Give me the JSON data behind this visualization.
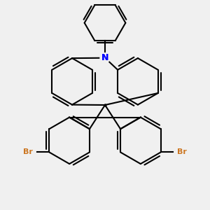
{
  "background_color": "#f0f0f0",
  "bond_color": "#000000",
  "nitrogen_color": "#0000ff",
  "bromine_color": "#cc7722",
  "bromine_label": "Br",
  "nitrogen_label": "N",
  "line_width": 1.5,
  "fig_width": 3.0,
  "fig_height": 3.0,
  "dpi": 100
}
